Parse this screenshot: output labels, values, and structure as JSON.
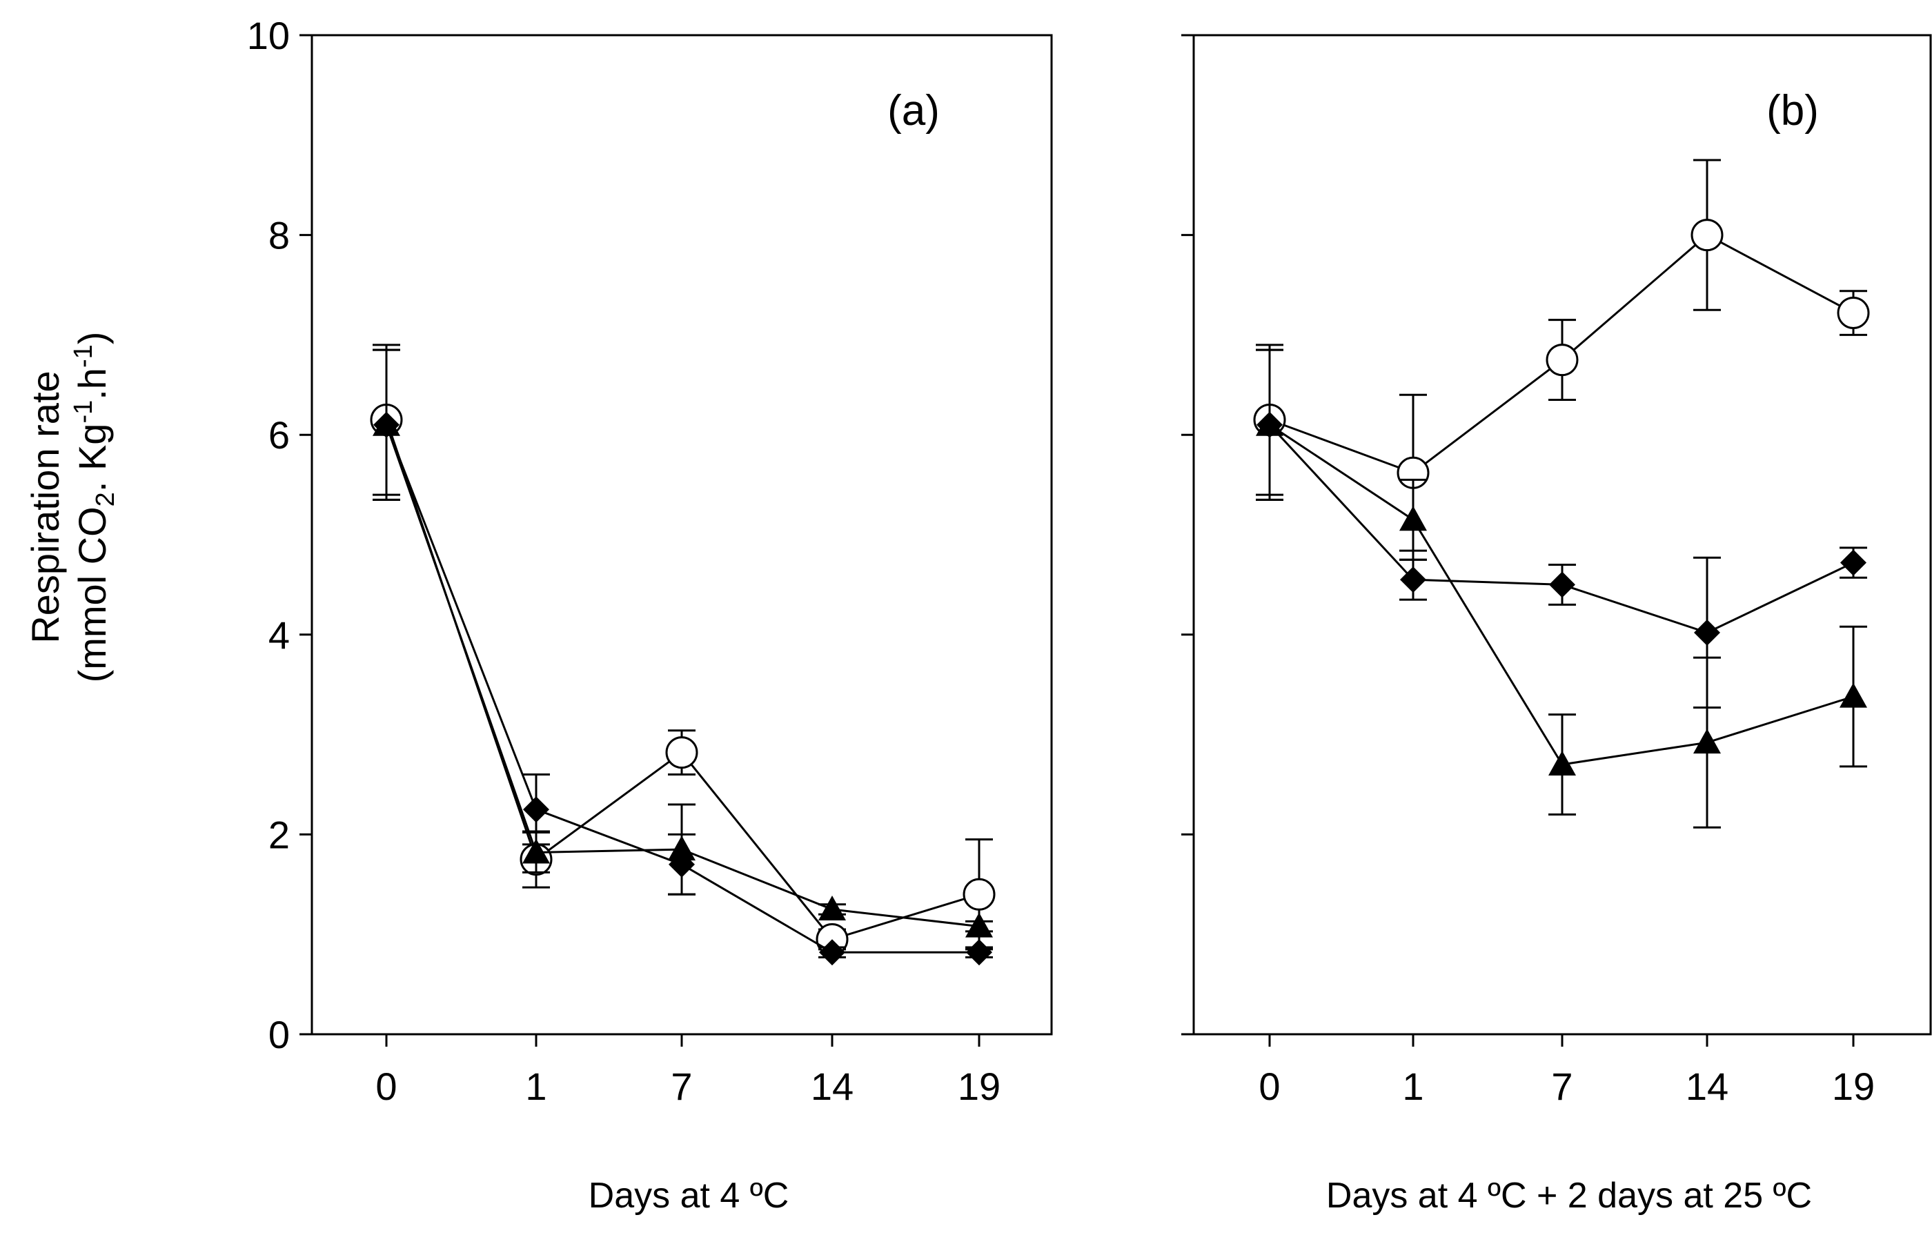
{
  "chart_data": {
    "type": "line",
    "ylabel_line1": "Respiration rate",
    "ylabel_line2_parts": [
      "(mmol CO",
      "2",
      ". Kg",
      "-1",
      ".h",
      "-1",
      ")"
    ],
    "y_ticks": [
      "0",
      "2",
      "4",
      "6",
      "8",
      "10"
    ],
    "ylim": [
      0,
      10
    ],
    "categories": [
      "0",
      "1",
      "7",
      "14",
      "19"
    ],
    "panels": [
      {
        "label": "(a)",
        "xlabel": "Days at 4 ºC",
        "series": [
          {
            "name": "open-circle",
            "marker": "circle-open",
            "values": [
              6.15,
              1.75,
              2.82,
              0.95,
              1.4
            ],
            "errors": [
              0.75,
              0.28,
              0.22,
              0.1,
              0.55
            ]
          },
          {
            "name": "filled-diamond",
            "marker": "diamond-filled",
            "values": [
              6.1,
              2.25,
              1.7,
              0.82,
              0.82
            ],
            "errors": [
              0.75,
              0.35,
              0.3,
              0.05,
              0.05
            ]
          },
          {
            "name": "filled-triangle",
            "marker": "triangle-filled",
            "values": [
              6.1,
              1.82,
              1.85,
              1.25,
              1.08
            ],
            "errors": [
              0.75,
              0.2,
              0.45,
              0.05,
              0.05
            ]
          }
        ]
      },
      {
        "label": "(b)",
        "xlabel": "Days at 4 ºC + 2 days at 25 ºC",
        "series": [
          {
            "name": "open-circle",
            "marker": "circle-open",
            "values": [
              6.15,
              5.62,
              6.75,
              8.0,
              7.22
            ],
            "errors": [
              0.75,
              0.78,
              0.4,
              0.75,
              0.22
            ]
          },
          {
            "name": "filled-diamond",
            "marker": "diamond-filled",
            "values": [
              6.1,
              4.55,
              4.5,
              4.02,
              4.72
            ],
            "errors": [
              0.75,
              0.2,
              0.2,
              0.75,
              0.15
            ]
          },
          {
            "name": "filled-triangle",
            "marker": "triangle-filled",
            "values": [
              6.1,
              5.15,
              2.7,
              2.92,
              3.38
            ],
            "errors": [
              0.75,
              0.4,
              0.5,
              0.85,
              0.7
            ]
          }
        ]
      }
    ]
  }
}
